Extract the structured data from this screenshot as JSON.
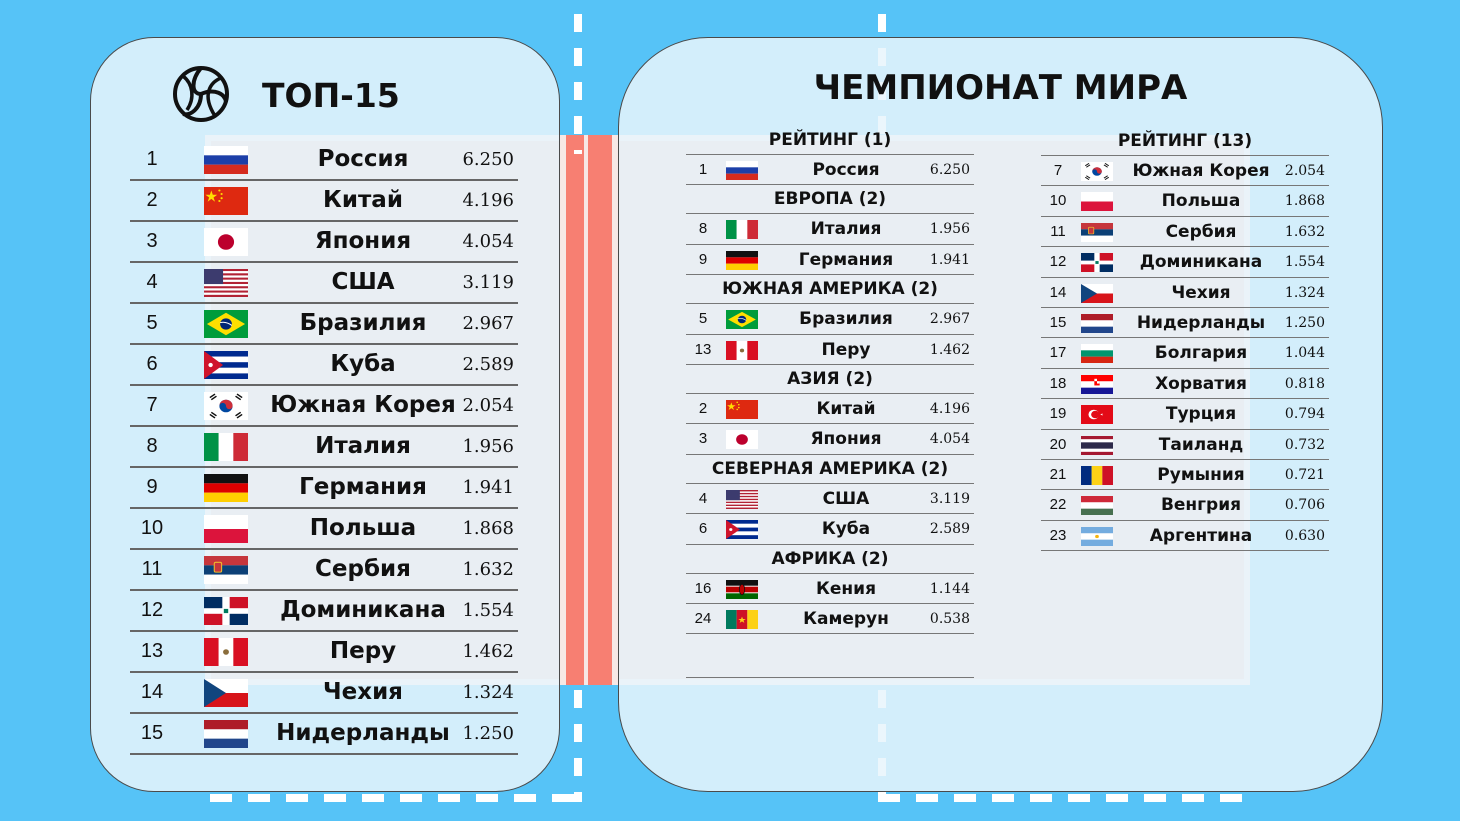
{
  "top15": {
    "title": "ТОП-15",
    "icon": "volleyball-icon",
    "rows": [
      {
        "rank": "1",
        "name": "Россия",
        "value": "6.250",
        "flag": "ru"
      },
      {
        "rank": "2",
        "name": "Китай",
        "value": "4.196",
        "flag": "cn"
      },
      {
        "rank": "3",
        "name": "Япония",
        "value": "4.054",
        "flag": "jp"
      },
      {
        "rank": "4",
        "name": "США",
        "value": "3.119",
        "flag": "us"
      },
      {
        "rank": "5",
        "name": "Бразилия",
        "value": "2.967",
        "flag": "br"
      },
      {
        "rank": "6",
        "name": "Куба",
        "value": "2.589",
        "flag": "cu"
      },
      {
        "rank": "7",
        "name": "Южная Корея",
        "value": "2.054",
        "flag": "kr"
      },
      {
        "rank": "8",
        "name": "Италия",
        "value": "1.956",
        "flag": "it"
      },
      {
        "rank": "9",
        "name": "Германия",
        "value": "1.941",
        "flag": "de"
      },
      {
        "rank": "10",
        "name": "Польша",
        "value": "1.868",
        "flag": "pl"
      },
      {
        "rank": "11",
        "name": "Сербия",
        "value": "1.632",
        "flag": "rs"
      },
      {
        "rank": "12",
        "name": "Доминикана",
        "value": "1.554",
        "flag": "do"
      },
      {
        "rank": "13",
        "name": "Перу",
        "value": "1.462",
        "flag": "pe"
      },
      {
        "rank": "14",
        "name": "Чехия",
        "value": "1.324",
        "flag": "cz"
      },
      {
        "rank": "15",
        "name": "Нидерланды",
        "value": "1.250",
        "flag": "nl"
      }
    ]
  },
  "worldChampionship": {
    "title": "ЧЕМПИОНАТ МИРА",
    "column1": [
      {
        "header": "РЕЙТИНГ (1)",
        "rows": [
          {
            "rank": "1",
            "name": "Россия",
            "value": "6.250",
            "flag": "ru"
          }
        ]
      },
      {
        "header": "ЕВРОПА (2)",
        "rows": [
          {
            "rank": "8",
            "name": "Италия",
            "value": "1.956",
            "flag": "it"
          },
          {
            "rank": "9",
            "name": "Германия",
            "value": "1.941",
            "flag": "de"
          }
        ]
      },
      {
        "header": "ЮЖНАЯ АМЕРИКА (2)",
        "rows": [
          {
            "rank": "5",
            "name": "Бразилия",
            "value": "2.967",
            "flag": "br"
          },
          {
            "rank": "13",
            "name": "Перу",
            "value": "1.462",
            "flag": "pe"
          }
        ]
      },
      {
        "header": "АЗИЯ (2)",
        "rows": [
          {
            "rank": "2",
            "name": "Китай",
            "value": "4.196",
            "flag": "cn"
          },
          {
            "rank": "3",
            "name": "Япония",
            "value": "4.054",
            "flag": "jp"
          }
        ]
      },
      {
        "header": "СЕВЕРНАЯ АМЕРИКА (2)",
        "rows": [
          {
            "rank": "4",
            "name": "США",
            "value": "3.119",
            "flag": "us"
          },
          {
            "rank": "6",
            "name": "Куба",
            "value": "2.589",
            "flag": "cu"
          }
        ]
      },
      {
        "header": "АФРИКА (2)",
        "rows": [
          {
            "rank": "16",
            "name": "Кения",
            "value": "1.144",
            "flag": "ke"
          },
          {
            "rank": "24",
            "name": "Камерун",
            "value": "0.538",
            "flag": "cm"
          }
        ]
      }
    ],
    "column2": [
      {
        "header": "РЕЙТИНГ (13)",
        "rows": [
          {
            "rank": "7",
            "name": "Южная Корея",
            "value": "2.054",
            "flag": "kr"
          },
          {
            "rank": "10",
            "name": "Польша",
            "value": "1.868",
            "flag": "pl"
          },
          {
            "rank": "11",
            "name": "Сербия",
            "value": "1.632",
            "flag": "rs"
          },
          {
            "rank": "12",
            "name": "Доминикана",
            "value": "1.554",
            "flag": "do"
          },
          {
            "rank": "14",
            "name": "Чехия",
            "value": "1.324",
            "flag": "cz"
          },
          {
            "rank": "15",
            "name": "Нидерланды",
            "value": "1.250",
            "flag": "nl"
          },
          {
            "rank": "17",
            "name": "Болгария",
            "value": "1.044",
            "flag": "bg"
          },
          {
            "rank": "18",
            "name": "Хорватия",
            "value": "0.818",
            "flag": "hr"
          },
          {
            "rank": "19",
            "name": "Турция",
            "value": "0.794",
            "flag": "tr"
          },
          {
            "rank": "20",
            "name": "Таиланд",
            "value": "0.732",
            "flag": "th"
          },
          {
            "rank": "21",
            "name": "Румыния",
            "value": "0.721",
            "flag": "ro"
          },
          {
            "rank": "22",
            "name": "Венгрия",
            "value": "0.706",
            "flag": "hu"
          },
          {
            "rank": "23",
            "name": "Аргентина",
            "value": "0.630",
            "flag": "ar"
          }
        ]
      }
    ]
  }
}
